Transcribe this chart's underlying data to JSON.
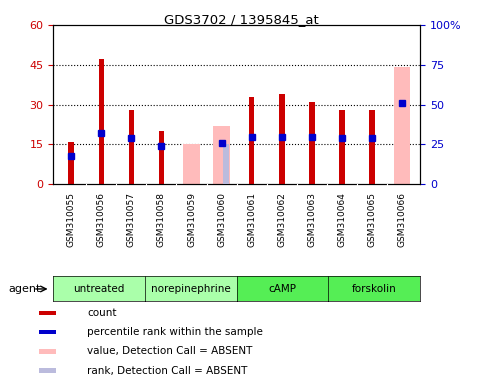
{
  "title": "GDS3702 / 1395845_at",
  "samples": [
    "GSM310055",
    "GSM310056",
    "GSM310057",
    "GSM310058",
    "GSM310059",
    "GSM310060",
    "GSM310061",
    "GSM310062",
    "GSM310063",
    "GSM310064",
    "GSM310065",
    "GSM310066"
  ],
  "count_values": [
    16,
    47,
    28,
    20,
    null,
    null,
    33,
    34,
    31,
    28,
    28,
    null
  ],
  "percentile_values": [
    18,
    32,
    29,
    24,
    null,
    26,
    30,
    30,
    30,
    29,
    29,
    51
  ],
  "absent_value_values": [
    null,
    null,
    null,
    null,
    15,
    22,
    null,
    null,
    null,
    null,
    null,
    44
  ],
  "absent_rank_values": [
    null,
    null,
    null,
    null,
    null,
    25,
    null,
    null,
    null,
    null,
    null,
    null
  ],
  "agents": [
    {
      "label": "untreated",
      "start": 0,
      "end": 3,
      "color": "#aaffaa"
    },
    {
      "label": "norepinephrine",
      "start": 3,
      "end": 6,
      "color": "#aaffaa"
    },
    {
      "label": "cAMP",
      "start": 6,
      "end": 9,
      "color": "#55ee55"
    },
    {
      "label": "forskolin",
      "start": 9,
      "end": 12,
      "color": "#55ee55"
    }
  ],
  "ylim_left": [
    0,
    60
  ],
  "ylim_right": [
    0,
    100
  ],
  "yticks_left": [
    0,
    15,
    30,
    45,
    60
  ],
  "yticks_right": [
    0,
    25,
    50,
    75,
    100
  ],
  "ytick_labels_left": [
    "0",
    "15",
    "30",
    "45",
    "60"
  ],
  "ytick_labels_right": [
    "0",
    "25",
    "50",
    "75",
    "100%"
  ],
  "color_count": "#cc0000",
  "color_percentile": "#0000cc",
  "color_absent_value": "#ffbbbb",
  "color_absent_rank": "#bbbbdd",
  "bg_sample_color": "#cccccc",
  "legend_items": [
    {
      "color": "#cc0000",
      "label": "count"
    },
    {
      "color": "#0000cc",
      "label": "percentile rank within the sample"
    },
    {
      "color": "#ffbbbb",
      "label": "value, Detection Call = ABSENT"
    },
    {
      "color": "#bbbbdd",
      "label": "rank, Detection Call = ABSENT"
    }
  ]
}
